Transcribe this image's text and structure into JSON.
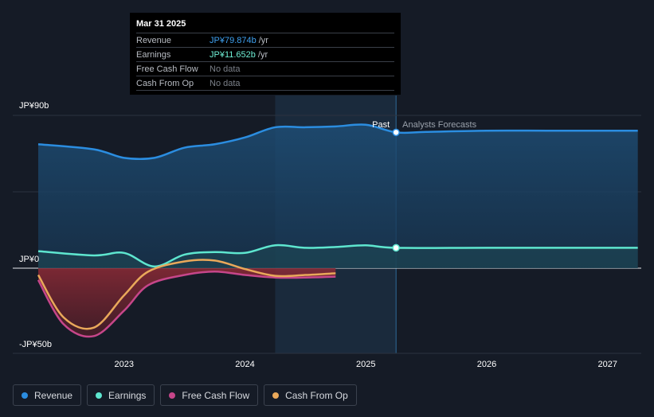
{
  "tooltip": {
    "date": "Mar 31 2025",
    "rows": [
      {
        "label": "Revenue",
        "value": "JP¥79.874b",
        "unit": "/yr",
        "color": "#3fa1f0"
      },
      {
        "label": "Earnings",
        "value": "JP¥11.652b",
        "unit": "/yr",
        "color": "#6ff0d6"
      },
      {
        "label": "Free Cash Flow",
        "value": "No data",
        "unit": "",
        "color": "#7b8089"
      },
      {
        "label": "Cash From Op",
        "value": "No data",
        "unit": "",
        "color": "#7b8089"
      }
    ]
  },
  "labels": {
    "past": "Past",
    "forecast": "Analysts Forecasts"
  },
  "legend": [
    {
      "label": "Revenue",
      "color": "#2b8de0"
    },
    {
      "label": "Earnings",
      "color": "#5ee6cf"
    },
    {
      "label": "Free Cash Flow",
      "color": "#c6468a"
    },
    {
      "label": "Cash From Op",
      "color": "#e9a85a"
    }
  ],
  "chart_data": {
    "type": "line",
    "y_unit": "JP¥ billions",
    "ylim": [
      -50,
      90
    ],
    "y_tick_labels": [
      {
        "value": 90,
        "label": "JP¥90b"
      },
      {
        "value": 0,
        "label": "JP¥0"
      },
      {
        "value": -50,
        "label": "-JP¥50b"
      }
    ],
    "xlim": [
      2022.28,
      2027.25
    ],
    "x_ticks": [
      2023,
      2024,
      2025,
      2026,
      2027
    ],
    "x_tick_labels": [
      "2023",
      "2024",
      "2025",
      "2026",
      "2027"
    ],
    "past_forecast_split": 2025.25,
    "highlight_range": [
      2024.25,
      2025.25
    ],
    "grid": true,
    "series": [
      {
        "name": "Revenue",
        "color": "#2b8de0",
        "x": [
          2022.29,
          2022.75,
          2023.0,
          2023.25,
          2023.5,
          2023.75,
          2024.0,
          2024.25,
          2024.5,
          2024.75,
          2025.0,
          2025.25,
          2025.5,
          2026.0,
          2026.5,
          2027.0,
          2027.25
        ],
        "y": [
          73,
          70,
          65,
          65,
          71,
          73,
          77,
          83,
          83,
          83.5,
          84.5,
          80,
          80.3,
          81,
          81,
          81,
          81
        ]
      },
      {
        "name": "Earnings",
        "color": "#5ee6cf",
        "x": [
          2022.29,
          2022.75,
          2023.0,
          2023.25,
          2023.5,
          2023.75,
          2024.0,
          2024.25,
          2024.5,
          2024.75,
          2025.0,
          2025.25,
          2026.0,
          2027.0,
          2027.25
        ],
        "y": [
          10,
          7.5,
          9,
          1,
          8,
          9.5,
          9,
          13.5,
          12,
          12.5,
          13.5,
          12,
          12,
          12,
          12
        ]
      },
      {
        "name": "Free Cash Flow",
        "color": "#c6468a",
        "x": [
          2022.29,
          2022.5,
          2022.75,
          2023.0,
          2023.2,
          2023.5,
          2023.75,
          2024.0,
          2024.25,
          2024.5,
          2024.75
        ],
        "y": [
          -7,
          -33,
          -40,
          -25,
          -10,
          -4,
          -2,
          -4,
          -5.5,
          -5.5,
          -5
        ]
      },
      {
        "name": "Cash From Op",
        "color": "#e9a85a",
        "x": [
          2022.29,
          2022.5,
          2022.75,
          2023.0,
          2023.2,
          2023.5,
          2023.75,
          2024.0,
          2024.25,
          2024.5,
          2024.75
        ],
        "y": [
          -4,
          -29,
          -35,
          -16,
          -2,
          4,
          4.5,
          -0.5,
          -4.5,
          -4,
          -3
        ]
      }
    ]
  }
}
